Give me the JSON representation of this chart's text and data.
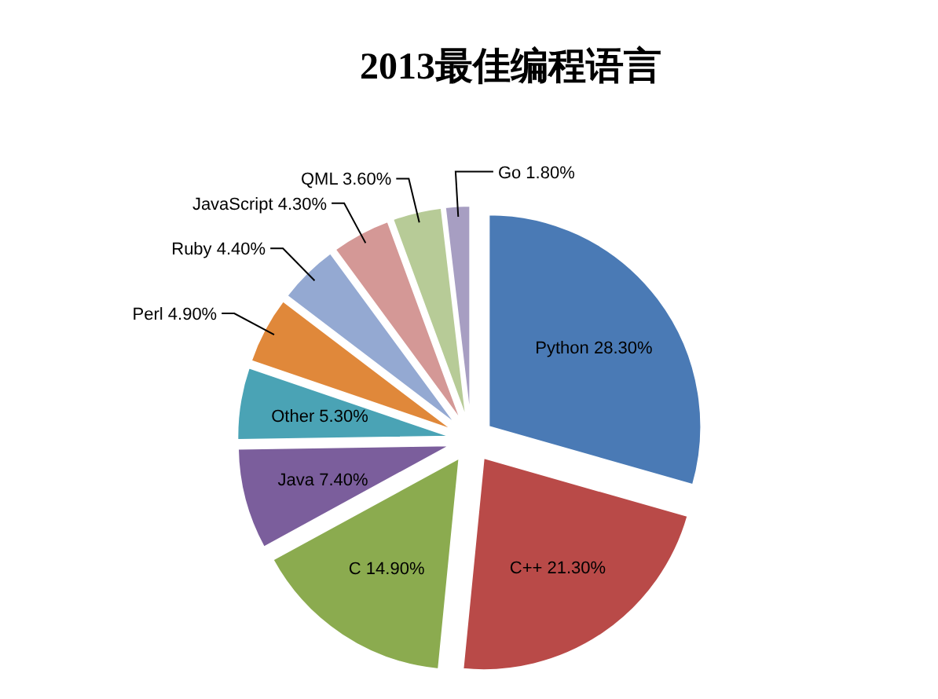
{
  "chart_data": {
    "type": "pie",
    "title": "2013最佳编程语言",
    "categories": [
      "Python",
      "C++",
      "C",
      "Java",
      "Other",
      "Perl",
      "Ruby",
      "JavaScript",
      "QML",
      "Go"
    ],
    "values": [
      28.3,
      21.3,
      14.9,
      7.4,
      5.3,
      4.9,
      4.4,
      4.3,
      3.6,
      1.8
    ],
    "value_labels": [
      "28.30%",
      "21.30%",
      "14.90%",
      "7.40%",
      "5.30%",
      "4.90%",
      "4.40%",
      "4.30%",
      "3.60%",
      "1.80%"
    ],
    "colors": [
      "#4a7ab5",
      "#b94a48",
      "#8bab4f",
      "#7b5e9c",
      "#4aa3b5",
      "#e0883a",
      "#94a9d2",
      "#d49896",
      "#b7cb97",
      "#a79ec2"
    ],
    "legend": false
  }
}
